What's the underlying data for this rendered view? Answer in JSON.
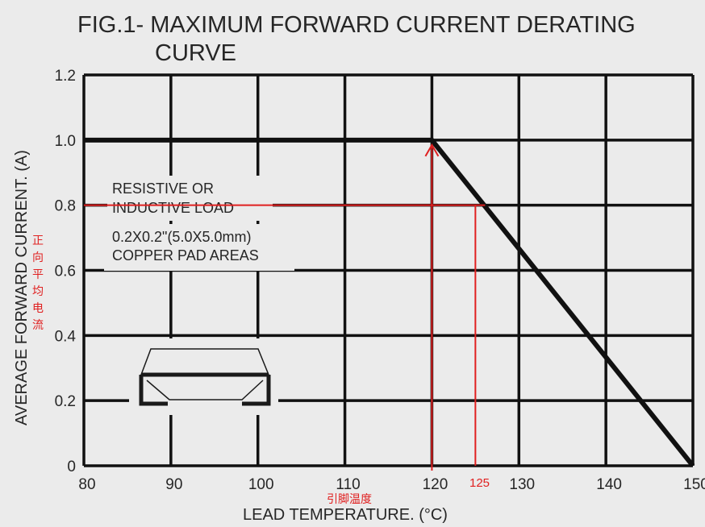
{
  "chart_data": {
    "type": "line",
    "title_line1": "FIG.1- MAXIMUM FORWARD CURRENT DERATING",
    "title_line2": "CURVE",
    "xlabel": "LEAD TEMPERATURE. (°C)",
    "ylabel": "AVERAGE FORWARD CURRENT. (A)",
    "xlim": [
      80,
      150
    ],
    "ylim": [
      0,
      1.2
    ],
    "x_ticks": [
      80,
      90,
      100,
      110,
      120,
      130,
      140,
      150
    ],
    "y_ticks": [
      0,
      0.2,
      0.4,
      0.6,
      0.8,
      1.0,
      1.2
    ],
    "y_tick_labels": [
      "0",
      "0.2",
      "0.4",
      "0.6",
      "0.8",
      "1.0",
      "1.2"
    ],
    "grid": true,
    "series": [
      {
        "x": [
          80,
          120,
          150
        ],
        "y": [
          1.0,
          1.0,
          0
        ],
        "color": "#111111"
      }
    ],
    "annotations": {
      "load_line1": "RESISTIVE OR",
      "load_line2": "INDUCTIVE LOAD",
      "pad_line1": "0.2X0.2\"(5.0X5.0mm)",
      "pad_line2": "COPPER PAD AREAS",
      "cn_ylabel": [
        "正",
        "向",
        "平",
        "均",
        "电",
        "流"
      ],
      "cn_xlabel": "引脚温度",
      "red_x_label": "125",
      "red_color": "#e02020",
      "red_hline_y": 0.8,
      "red_hline_x_range": [
        80,
        125
      ],
      "red_vline_x": 125,
      "red_arrow_x": 120,
      "red_arrow_y_range": [
        0,
        1.0
      ]
    }
  }
}
